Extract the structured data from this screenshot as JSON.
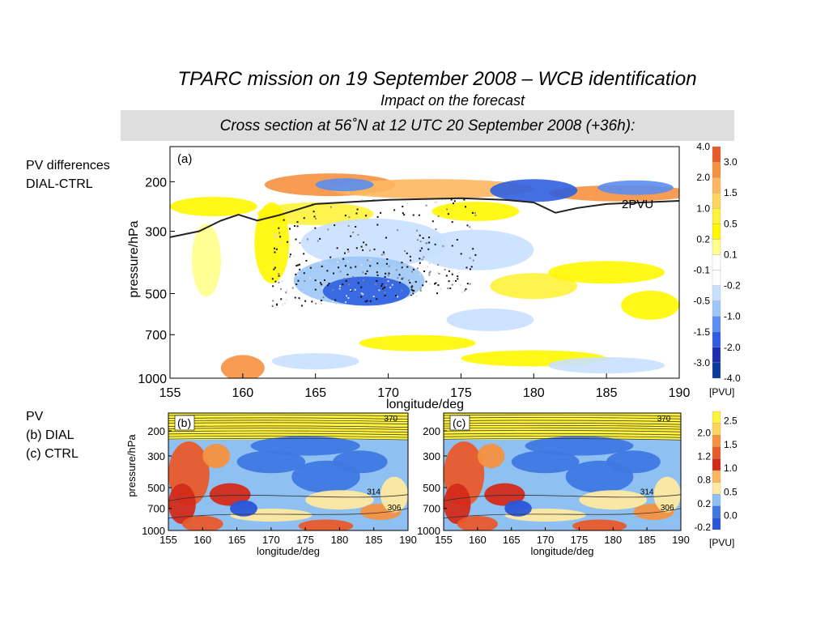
{
  "slide": {
    "title": "TPARC mission on 19 September 2008 – WCB identification",
    "subtitle": "Impact on the forecast",
    "band": "Cross section at 56˚N at 12 UTC 20 September 2008 (+36h):",
    "left_a": [
      "PV differences",
      "DIAL-CTRL"
    ],
    "left_bc": [
      "PV",
      "(b) DIAL",
      "(c) CTRL"
    ]
  },
  "chart_data": [
    {
      "id": "a",
      "type": "heatmap",
      "panel_label": "(a)",
      "xlabel": "longitude/deg",
      "ylabel": "pressure/hPa",
      "xlim": [
        155,
        190
      ],
      "ylim": [
        1000,
        150
      ],
      "xticks": [
        155,
        160,
        165,
        170,
        175,
        180,
        185,
        190
      ],
      "yticks": [
        200,
        300,
        500,
        700,
        1000
      ],
      "annotation": "2PVU",
      "colorbar": {
        "unit": "[PVU]",
        "levels": [
          "4.0",
          "3.0",
          "2.0",
          "1.5",
          "1.0",
          "0.5",
          "0.2",
          "0.1",
          "-0.1",
          "-0.2",
          "-0.5",
          "-1.0",
          "-1.5",
          "-2.0",
          "-3.0",
          "-4.0"
        ],
        "colors": [
          "#e95a2a",
          "#f6913f",
          "#fdb760",
          "#fdd55c",
          "#fff23a",
          "#fff700",
          "#ffff8a",
          "#ffffff",
          "#ffffff",
          "#c8e0ff",
          "#9cc7f6",
          "#5b8ef0",
          "#2f5fe0",
          "#1d2fb0",
          "#0a3a9a",
          "#0f5f8a"
        ]
      },
      "tropopause_2pvu": [
        [
          155,
          315
        ],
        [
          157,
          300
        ],
        [
          158.5,
          275
        ],
        [
          159.7,
          262
        ],
        [
          161,
          275
        ],
        [
          162.5,
          263
        ],
        [
          165,
          240
        ],
        [
          170,
          232
        ],
        [
          175,
          229
        ],
        [
          178,
          232
        ],
        [
          180,
          237
        ],
        [
          181.5,
          258
        ],
        [
          183,
          248
        ],
        [
          185,
          240
        ],
        [
          190,
          234
        ]
      ]
    },
    {
      "id": "b",
      "type": "heatmap",
      "panel_label": "(b)",
      "xlabel": "longitude/deg",
      "ylabel": "pressure/hPa",
      "xlim": [
        155,
        190
      ],
      "xticks": [
        155,
        160,
        165,
        170,
        175,
        180,
        185,
        190
      ],
      "yticks": [
        200,
        300,
        500,
        700,
        1000
      ],
      "contour_labels": [
        "370",
        "314",
        "306"
      ]
    },
    {
      "id": "c",
      "type": "heatmap",
      "panel_label": "(c)",
      "xlabel": "longitude/deg",
      "xlim": [
        155,
        190
      ],
      "xticks": [
        155,
        160,
        165,
        170,
        175,
        180,
        185,
        190
      ],
      "yticks": [
        200,
        300,
        500,
        700,
        1000
      ],
      "contour_labels": [
        "370",
        "314",
        "306"
      ],
      "colorbar": {
        "unit": "[PVU]",
        "levels": [
          "2.5",
          "2.0",
          "1.5",
          "1.2",
          "1.0",
          "0.8",
          "0.5",
          "0.2",
          "0.0",
          "-0.2"
        ],
        "colors": [
          "#fff23a",
          "#fdd55c",
          "#f6913f",
          "#e95a2a",
          "#d42a1a",
          "#fdb760",
          "#ffe9a0",
          "#8fc0f2",
          "#3f78e2",
          "#2a55d8"
        ]
      }
    }
  ]
}
